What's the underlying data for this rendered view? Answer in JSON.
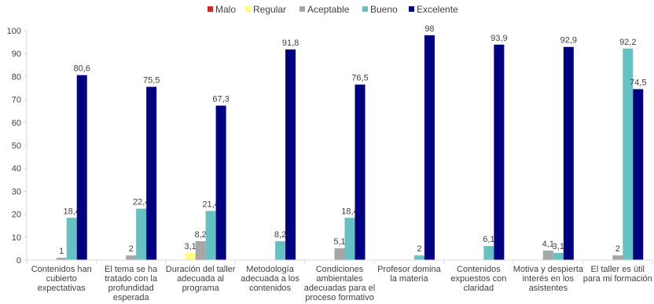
{
  "chart_data": {
    "type": "bar",
    "categories": [
      [
        "Contenidos han",
        "cubierto",
        "expectativas"
      ],
      [
        "El tema se ha",
        "tratado con la",
        "profundidad",
        "esperada"
      ],
      [
        "Duración del taller",
        "adecuada al",
        "programa"
      ],
      [
        "Metodología",
        "adecuada a los",
        "contenidos"
      ],
      [
        "Condiciones",
        "ambientales",
        "adecuadas para el",
        "proceso formativo"
      ],
      [
        "Profesor domina",
        "la materia"
      ],
      [
        "Contenidos",
        "expuestos con",
        "claridad"
      ],
      [
        "Motiva y despierta",
        "interés en los",
        "asistentes"
      ],
      [
        "El taller es útil",
        "para mi formación"
      ]
    ],
    "series": [
      {
        "name": "Malo",
        "color": "#d62728",
        "values": [
          0,
          0,
          0,
          0,
          0,
          0,
          0,
          0,
          0
        ]
      },
      {
        "name": "Regular",
        "color": "#ffff80",
        "values": [
          0,
          0,
          3.1,
          0,
          0,
          0,
          0,
          0,
          0
        ]
      },
      {
        "name": "Aceptable",
        "color": "#a6a6a6",
        "values": [
          1,
          2,
          8.2,
          0,
          5.1,
          0,
          0,
          4.1,
          2
        ]
      },
      {
        "name": "Bueno",
        "color": "#66c2c2",
        "values": [
          18.4,
          22.4,
          21.4,
          8.2,
          18.4,
          2,
          6.1,
          3.1,
          92.2
        ]
      },
      {
        "name": "Excelente",
        "color": "#000080",
        "values": [
          80.6,
          75.5,
          67.3,
          91.8,
          76.5,
          98,
          93.9,
          92.9,
          74.5
        ]
      }
    ],
    "data_labels": [
      [
        null,
        null,
        null,
        null,
        null,
        null,
        null,
        null,
        null
      ],
      [
        null,
        null,
        "3,1",
        null,
        null,
        null,
        null,
        null,
        null
      ],
      [
        "1",
        "2",
        "8,2",
        null,
        "5,1",
        null,
        null,
        "4,1",
        "2"
      ],
      [
        "18,4",
        "22,4",
        "21,4",
        "8,2",
        "18,4",
        "2",
        "6,1",
        "3,1",
        "92,2"
      ],
      [
        "80,6",
        "75,5",
        "67,3",
        "91,8",
        "76,5",
        "98",
        "93,9",
        "92,9",
        "74,5"
      ]
    ],
    "y_ticks": [
      0,
      10,
      20,
      30,
      40,
      50,
      60,
      70,
      80,
      90,
      100
    ],
    "ylim": [
      0,
      100
    ],
    "grid": false,
    "legend_position": "top-center",
    "title": "",
    "xlabel": "",
    "ylabel": ""
  }
}
